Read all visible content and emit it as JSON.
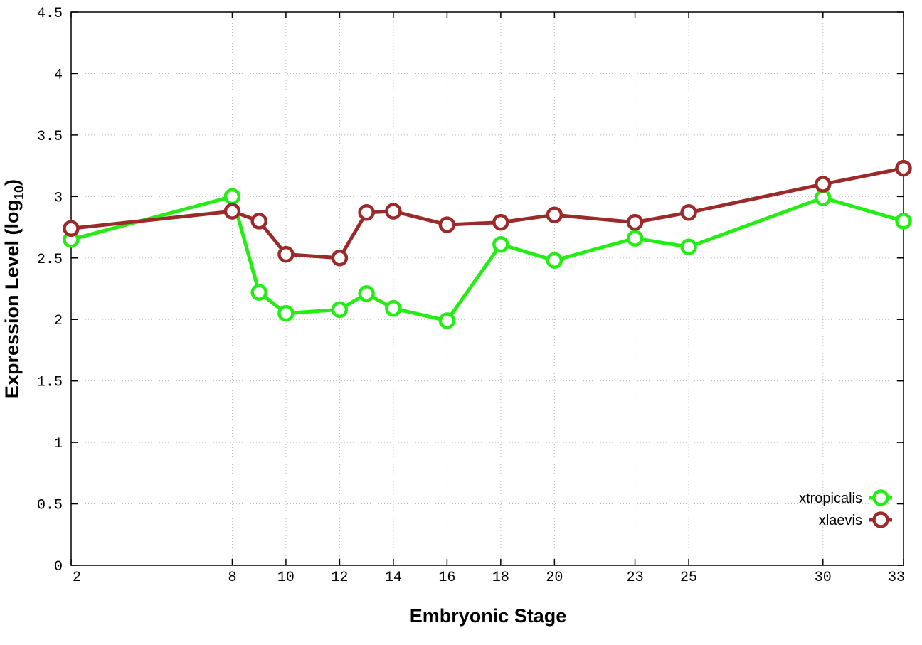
{
  "chart_data": {
    "type": "line",
    "xlabel": "Embryonic Stage",
    "ylabel": "Expression Level (log",
    "ylabel_sub": "10",
    "ylabel_close": ")",
    "ylim": [
      0,
      4.5
    ],
    "y_ticks": [
      0,
      0.5,
      1,
      1.5,
      2,
      2.5,
      3,
      3.5,
      4,
      4.5
    ],
    "y_tick_labels": [
      "0",
      "0.5",
      "1",
      "1.5",
      "2",
      "2.5",
      "3",
      "3.5",
      "4",
      "4.5"
    ],
    "categories": [
      "2",
      "8",
      "9",
      "10",
      "12",
      "13",
      "14",
      "16",
      "18",
      "20",
      "23",
      "25",
      "30",
      "33"
    ],
    "x_tick_labels": [
      "2",
      "8",
      "10",
      "12",
      "14",
      "16",
      "18",
      "20",
      "23",
      "25",
      "30",
      "33"
    ],
    "grid": true,
    "legend_position": "bottom-right",
    "series": [
      {
        "name": "xtropicalis",
        "color": "#22ee11",
        "values": [
          2.65,
          3.0,
          2.22,
          2.05,
          2.08,
          2.21,
          2.09,
          1.99,
          2.61,
          2.48,
          2.66,
          2.59,
          2.99,
          2.8
        ]
      },
      {
        "name": "xlaevis",
        "color": "#9b2a2a",
        "values": [
          2.74,
          2.88,
          2.8,
          2.53,
          2.5,
          2.87,
          2.88,
          2.77,
          2.79,
          2.85,
          2.79,
          2.87,
          3.1,
          3.23
        ]
      }
    ]
  }
}
